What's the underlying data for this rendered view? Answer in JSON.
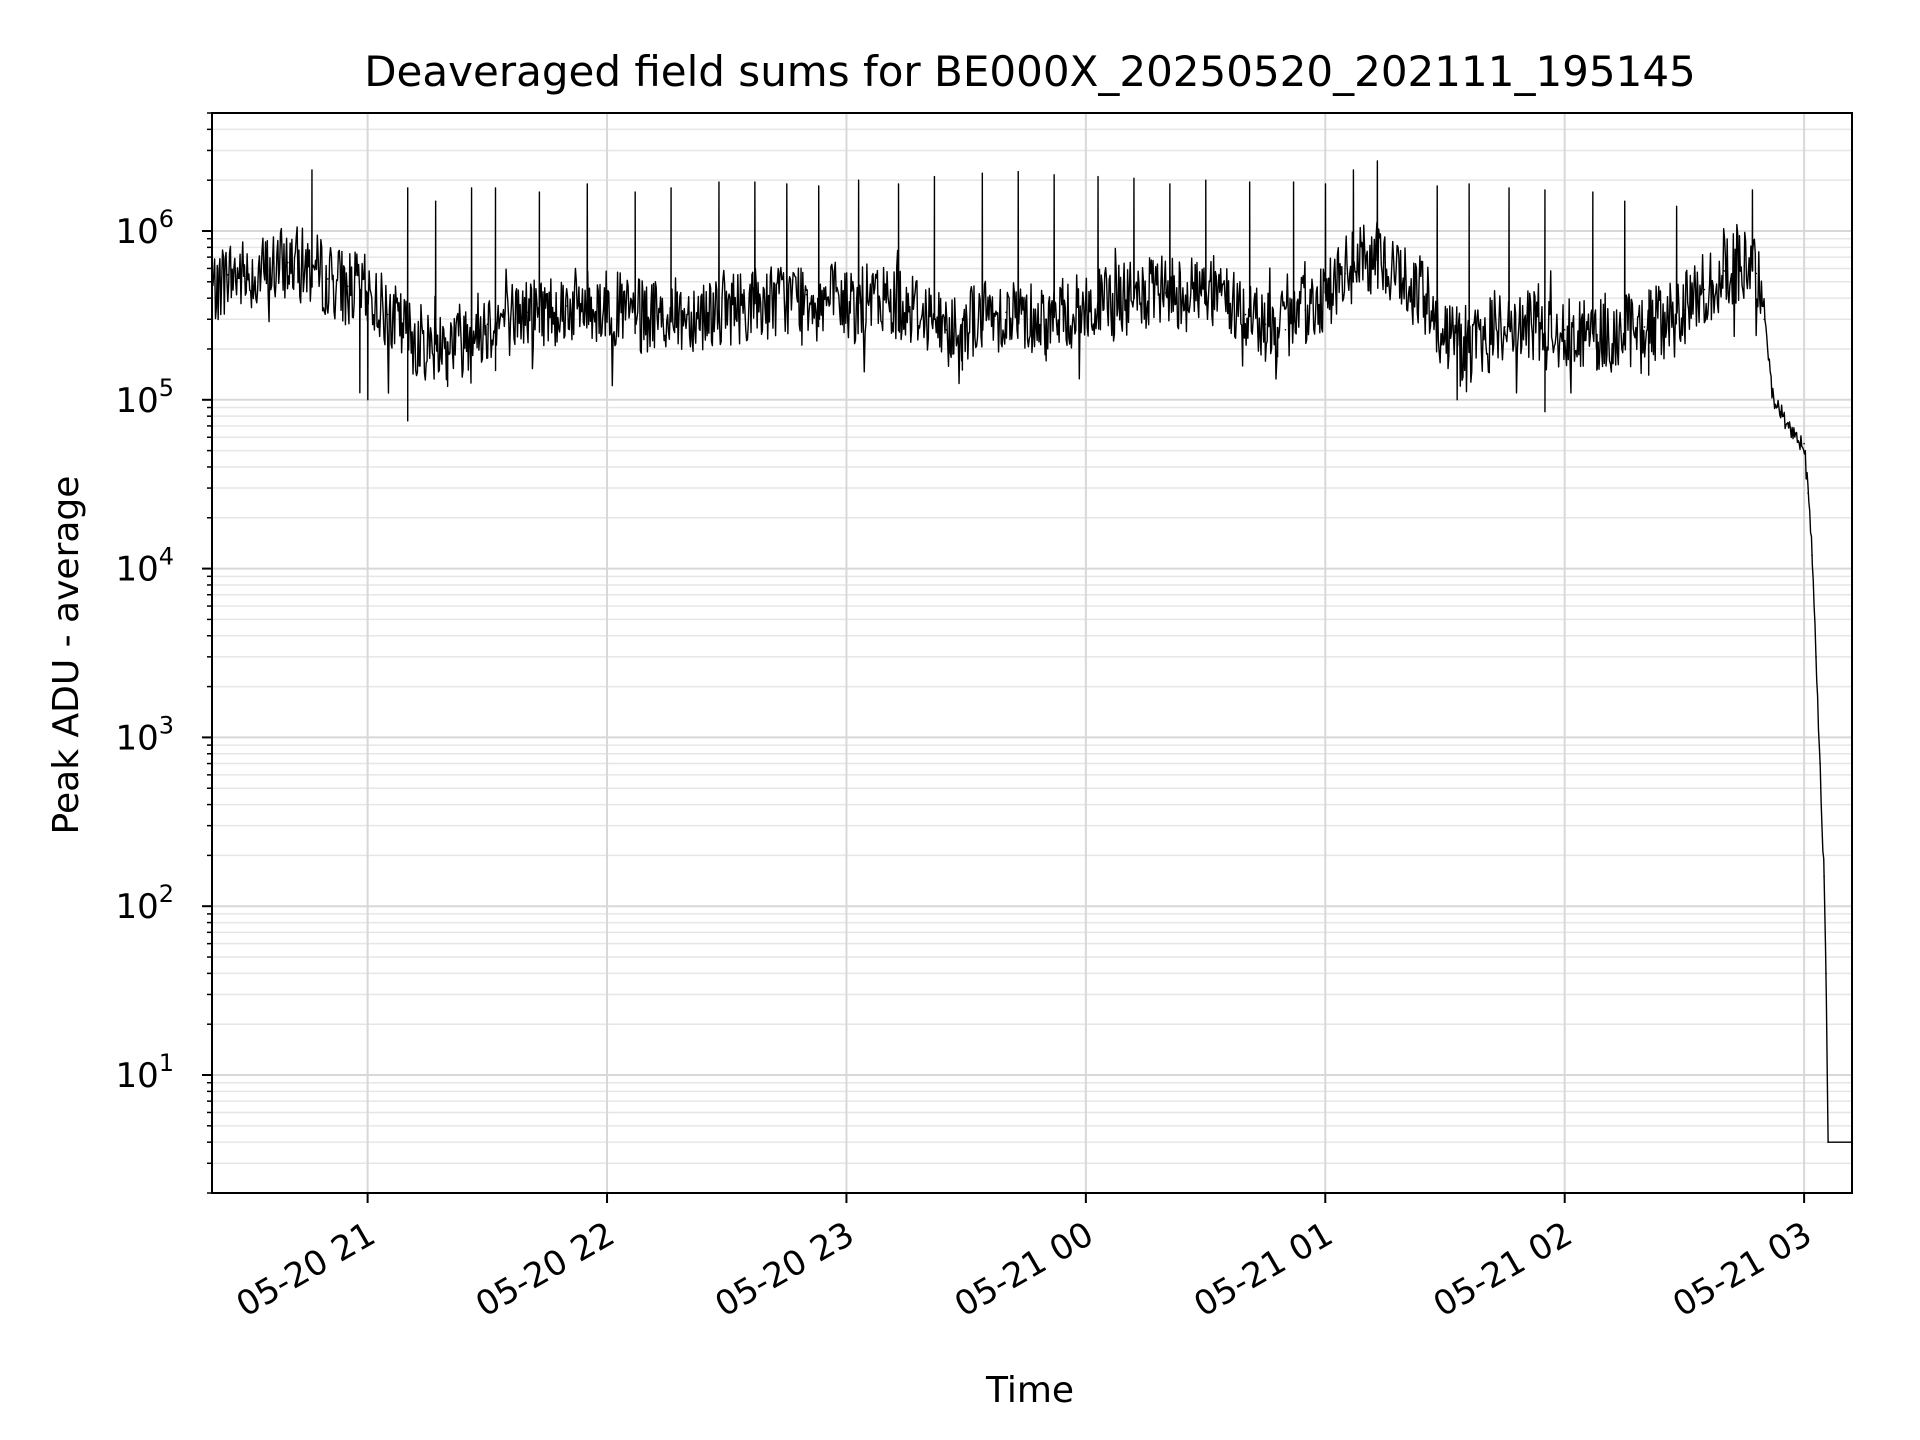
{
  "chart_data": {
    "type": "line",
    "title": "Deaveraged field sums for BE000X_20250520_202111_195145",
    "xlabel": "Time",
    "ylabel": "Peak ADU - average",
    "yscale": "log",
    "ylim": [
      2,
      5000000
    ],
    "xlim": [
      "05-20 20:21",
      "05-21 03:12"
    ],
    "grid": true,
    "x_ticks": [
      {
        "time": "05-20 21:00",
        "label": "05-20 21"
      },
      {
        "time": "05-20 22:00",
        "label": "05-20 22"
      },
      {
        "time": "05-20 23:00",
        "label": "05-20 23"
      },
      {
        "time": "05-21 00:00",
        "label": "05-21 00"
      },
      {
        "time": "05-21 01:00",
        "label": "05-21 01"
      },
      {
        "time": "05-21 02:00",
        "label": "05-21 02"
      },
      {
        "time": "05-21 03:00",
        "label": "05-21 03"
      }
    ],
    "y_ticks": [
      {
        "value": 10,
        "base": "10",
        "exp": "1"
      },
      {
        "value": 100,
        "base": "10",
        "exp": "2"
      },
      {
        "value": 1000,
        "base": "10",
        "exp": "3"
      },
      {
        "value": 10000,
        "base": "10",
        "exp": "4"
      },
      {
        "value": 100000,
        "base": "10",
        "exp": "5"
      },
      {
        "value": 1000000,
        "base": "10",
        "exp": "6"
      }
    ],
    "series": [
      {
        "color": "#000000",
        "points": [
          [
            "05-20 20:21",
            450000
          ],
          [
            "05-20 20:25",
            550000
          ],
          [
            "05-20 20:30",
            550000
          ],
          [
            "05-20 20:35",
            580000
          ],
          [
            "05-20 20:40",
            650000
          ],
          [
            "05-20 20:45",
            620000
          ],
          [
            "05-20 20:50",
            520000
          ],
          [
            "05-20 20:55",
            470000
          ],
          [
            "05-20 21:00",
            430000
          ],
          [
            "05-20 21:05",
            320000
          ],
          [
            "05-20 21:10",
            250000
          ],
          [
            "05-20 21:15",
            210000
          ],
          [
            "05-20 21:20",
            220000
          ],
          [
            "05-20 21:25",
            250000
          ],
          [
            "05-20 21:30",
            280000
          ],
          [
            "05-20 21:40",
            330000
          ],
          [
            "05-20 21:50",
            360000
          ],
          [
            "05-20 22:00",
            360000
          ],
          [
            "05-20 22:10",
            300000
          ],
          [
            "05-20 22:20",
            320000
          ],
          [
            "05-20 22:30",
            350000
          ],
          [
            "05-20 22:40",
            380000
          ],
          [
            "05-20 22:50",
            420000
          ],
          [
            "05-20 23:00",
            360000
          ],
          [
            "05-20 23:10",
            400000
          ],
          [
            "05-20 23:20",
            330000
          ],
          [
            "05-20 23:25",
            260000
          ],
          [
            "05-20 23:30",
            290000
          ],
          [
            "05-20 23:40",
            330000
          ],
          [
            "05-20 23:50",
            300000
          ],
          [
            "05-21 00:00",
            340000
          ],
          [
            "05-21 00:10",
            390000
          ],
          [
            "05-21 00:20",
            430000
          ],
          [
            "05-21 00:30",
            450000
          ],
          [
            "05-21 00:35",
            400000
          ],
          [
            "05-21 00:40",
            320000
          ],
          [
            "05-21 00:45",
            280000
          ],
          [
            "05-21 00:50",
            260000
          ],
          [
            "05-21 00:55",
            340000
          ],
          [
            "05-21 01:00",
            430000
          ],
          [
            "05-21 01:05",
            560000
          ],
          [
            "05-21 01:10",
            700000
          ],
          [
            "05-21 01:15",
            650000
          ],
          [
            "05-21 01:20",
            520000
          ],
          [
            "05-21 01:25",
            400000
          ],
          [
            "05-21 01:30",
            260000
          ],
          [
            "05-21 01:35",
            180000
          ],
          [
            "05-21 01:40",
            240000
          ],
          [
            "05-21 01:45",
            270000
          ],
          [
            "05-21 01:50",
            280000
          ],
          [
            "05-21 01:55",
            250000
          ],
          [
            "05-21 02:00",
            260000
          ],
          [
            "05-21 02:10",
            240000
          ],
          [
            "05-21 02:20",
            270000
          ],
          [
            "05-21 02:30",
            340000
          ],
          [
            "05-21 02:35",
            450000
          ],
          [
            "05-21 02:40",
            580000
          ],
          [
            "05-21 02:45",
            620000
          ],
          [
            "05-21 02:48",
            560000
          ],
          [
            "05-21 02:50",
            300000
          ],
          [
            "05-21 02:52",
            110000
          ],
          [
            "05-21 02:54",
            85000
          ],
          [
            "05-21 02:57",
            65000
          ],
          [
            "05-21 03:00",
            55000
          ],
          [
            "05-21 03:01",
            28000
          ],
          [
            "05-21 03:02",
            12000
          ],
          [
            "05-21 03:03",
            3000
          ],
          [
            "05-21 03:04",
            700
          ],
          [
            "05-21 03:05",
            150
          ],
          [
            "05-21 03:05:30",
            40
          ],
          [
            "05-21 03:06",
            4
          ],
          [
            "05-21 03:12",
            4
          ]
        ],
        "spikes": [
          [
            "05-20 20:46",
            2300000
          ],
          [
            "05-20 21:10",
            1800000
          ],
          [
            "05-20 21:17",
            1500000
          ],
          [
            "05-20 21:26",
            1800000
          ],
          [
            "05-20 21:32",
            1800000
          ],
          [
            "05-20 21:43",
            1700000
          ],
          [
            "05-20 21:55",
            1900000
          ],
          [
            "05-20 22:07",
            1700000
          ],
          [
            "05-20 22:16",
            1800000
          ],
          [
            "05-20 22:28",
            1950000
          ],
          [
            "05-20 22:37",
            1950000
          ],
          [
            "05-20 22:45",
            1900000
          ],
          [
            "05-20 22:53",
            1850000
          ],
          [
            "05-20 23:03",
            2000000
          ],
          [
            "05-20 23:13",
            1900000
          ],
          [
            "05-20 23:22",
            2100000
          ],
          [
            "05-20 23:34",
            2200000
          ],
          [
            "05-20 23:43",
            2250000
          ],
          [
            "05-20 23:52",
            2150000
          ],
          [
            "05-21 00:03",
            2100000
          ],
          [
            "05-21 00:12",
            2050000
          ],
          [
            "05-21 00:21",
            1900000
          ],
          [
            "05-21 00:30",
            2000000
          ],
          [
            "05-21 00:41",
            1950000
          ],
          [
            "05-21 00:52",
            1950000
          ],
          [
            "05-21 01:00",
            1900000
          ],
          [
            "05-21 01:07",
            2300000
          ],
          [
            "05-21 01:13",
            2600000
          ],
          [
            "05-21 01:28",
            1850000
          ],
          [
            "05-21 01:36",
            1900000
          ],
          [
            "05-21 01:46",
            1800000
          ],
          [
            "05-21 01:55",
            1750000
          ],
          [
            "05-21 02:07",
            1700000
          ],
          [
            "05-21 02:15",
            1500000
          ],
          [
            "05-21 02:28",
            1400000
          ],
          [
            "05-21 02:47",
            1750000
          ]
        ],
        "dips": [
          [
            "05-20 20:58",
            110000
          ],
          [
            "05-20 21:00",
            100000
          ],
          [
            "05-20 21:10",
            75000
          ],
          [
            "05-20 21:20",
            120000
          ],
          [
            "05-20 23:29",
            150000
          ],
          [
            "05-20 23:50",
            170000
          ],
          [
            "05-21 00:48",
            180000
          ],
          [
            "05-21 01:33",
            100000
          ],
          [
            "05-21 01:55",
            85000
          ],
          [
            "05-21 02:08",
            150000
          ],
          [
            "05-21 02:21",
            140000
          ]
        ]
      }
    ]
  }
}
